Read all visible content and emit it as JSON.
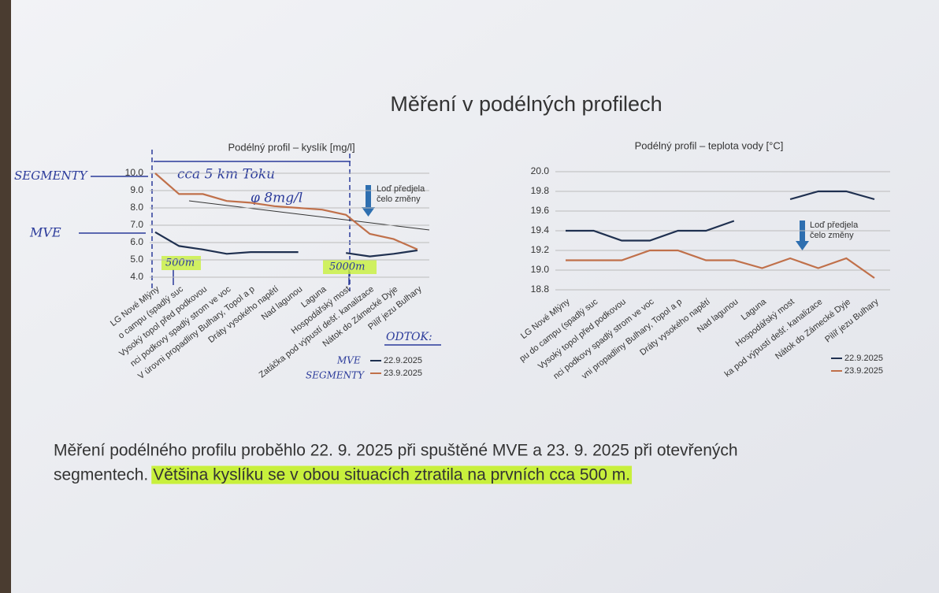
{
  "page": {
    "title": "Měření v podélných profilech",
    "line1": "Měření podélného profilu proběhlo 22. 9. 2025 při spuštěné MVE a 23. 9. 2025 při otevřených",
    "line2": "segmentech.",
    "highlight": "Většina kyslíku se v obou situacích ztratila na prvních cca 500 m."
  },
  "handwriting": {
    "segmenty": "SEGMENTY",
    "mve": "MVE",
    "distance": "cca 5 km Toku",
    "average": "φ 8mg/l",
    "mark_500": "500m",
    "mark_5000": "5000m",
    "odtok": "ODTOK:",
    "legend_mve": "MVE",
    "legend_segmenty": "SEGMENTY"
  },
  "chart_data": [
    {
      "type": "line",
      "title": "Podélný profil – kyslík [mg/l]",
      "categories": [
        "LG Nové Mlýny",
        "o campu (spadlý suc",
        "Vysoký topol před podkovou",
        "nci podkovy spadlý strom ve voc",
        "V úrovni propadliny Bulhary, Topol a p",
        "Dráty vysokého napětí",
        "Nad lagunou",
        "Laguna",
        "Hospodářský most",
        "Zatáčka pod výpustí dešť. kanalizace",
        "Nátok do Zámecké Dyje",
        "Pilíř jezu Bulhary"
      ],
      "series": [
        {
          "name": "22.9.2025",
          "color": "#1f3050",
          "values": [
            6.6,
            5.8,
            5.6,
            5.35,
            5.45,
            5.45,
            5.45,
            null,
            5.4,
            5.2,
            5.35,
            5.55
          ]
        },
        {
          "name": "23.9.2025",
          "color": "#c0704a",
          "values": [
            10.0,
            8.8,
            8.8,
            8.4,
            8.3,
            8.1,
            8.0,
            7.9,
            7.6,
            6.5,
            6.2,
            5.6
          ]
        }
      ],
      "ylim": [
        4,
        10
      ],
      "yticks": [
        {
          "value": 4,
          "label": "4.0"
        },
        {
          "value": 5,
          "label": "5.0"
        },
        {
          "value": 6,
          "label": "6.0"
        },
        {
          "value": 7,
          "label": "7.0"
        },
        {
          "value": 8,
          "label": "8.0"
        },
        {
          "value": 9,
          "label": "9.0"
        },
        {
          "value": 10,
          "label": "10.0"
        }
      ],
      "grid": true,
      "annotation": [
        "Loď předjela",
        "čelo změny"
      ],
      "legend": "bottom-right"
    },
    {
      "type": "line",
      "title": "Podélný profil – teplota vody [°C]",
      "categories": [
        "LG Nové Mlýny",
        "pu do campu (spadlý suc",
        "Vysoký topol před podkovou",
        "nci podkovy spadlý strom ve voc",
        "vni propadliny Bulhary, Topol a p",
        "Dráty vysokého napětí",
        "Nad lagunou",
        "Laguna",
        "Hospodářský most",
        "ka pod výpustí dešť. kanalizace",
        "Nátok do Zámecké Dyje",
        "Pilíř jezu Bulhary"
      ],
      "series": [
        {
          "name": "22.9.2025",
          "color": "#1f3050",
          "values": [
            19.4,
            19.4,
            19.3,
            19.3,
            19.4,
            19.4,
            19.5,
            null,
            19.72,
            19.8,
            19.8,
            19.72
          ]
        },
        {
          "name": "23.9.2025",
          "color": "#c0704a",
          "values": [
            19.1,
            19.1,
            19.1,
            19.2,
            19.2,
            19.1,
            19.1,
            19.02,
            19.12,
            19.02,
            19.12,
            18.92
          ]
        }
      ],
      "ylim": [
        18.8,
        20
      ],
      "yticks": [
        18.8,
        {
          "value": 19,
          "label": "19.0"
        },
        19.2,
        19.4,
        19.6,
        19.8,
        {
          "value": 20,
          "label": "20.0"
        }
      ],
      "grid": true,
      "annotation": [
        "Loď předjela",
        "čelo změny"
      ],
      "legend": "bottom-right"
    }
  ]
}
